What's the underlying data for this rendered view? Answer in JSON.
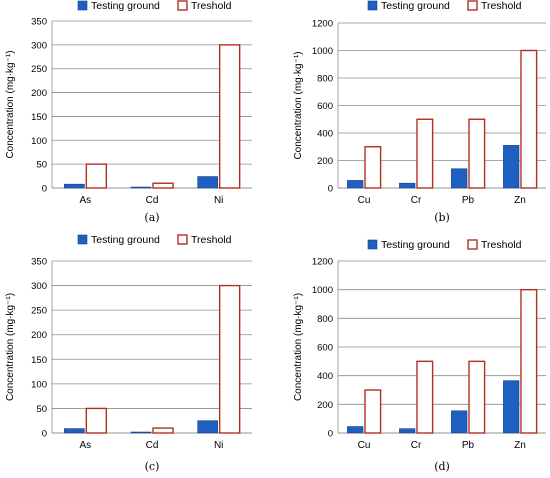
{
  "colors": {
    "testing": "#1f5fbf",
    "testing_edge": "#1a3f8f",
    "threshold_edge": "#b03020",
    "threshold_fill": "#ffffff",
    "grid": "#8c8c8c"
  },
  "chart_data": [
    {
      "type": "bar",
      "panel": "(a)",
      "categories": [
        "As",
        "Cd",
        "Ni"
      ],
      "series": [
        {
          "name": "Testing ground",
          "values": [
            8,
            2,
            24
          ]
        },
        {
          "name": "Treshold",
          "values": [
            50,
            10,
            300
          ]
        }
      ],
      "ylabel": "Concentration (mg·kg⁻¹)",
      "ylim": [
        0,
        350
      ],
      "yticks": [
        0,
        50,
        100,
        150,
        200,
        250,
        300,
        350
      ],
      "grid": true,
      "legend": "top"
    },
    {
      "type": "bar",
      "panel": "(b)",
      "categories": [
        "Cu",
        "Cr",
        "Pb",
        "Zn"
      ],
      "series": [
        {
          "name": "Testing ground",
          "values": [
            55,
            35,
            140,
            310
          ]
        },
        {
          "name": "Treshold",
          "values": [
            300,
            500,
            500,
            1000
          ]
        }
      ],
      "ylabel": "Concentration (mg·kg⁻¹)",
      "ylim": [
        0,
        1200
      ],
      "yticks": [
        0,
        200,
        400,
        600,
        800,
        1000,
        1200
      ],
      "grid": true,
      "legend": "top"
    },
    {
      "type": "bar",
      "panel": "(c)",
      "categories": [
        "As",
        "Cd",
        "Ni"
      ],
      "series": [
        {
          "name": "Testing ground",
          "values": [
            9,
            2,
            25
          ]
        },
        {
          "name": "Treshold",
          "values": [
            50,
            10,
            300
          ]
        }
      ],
      "ylabel": "Concentration (mg·kg⁻¹)",
      "ylim": [
        0,
        350
      ],
      "yticks": [
        0,
        50,
        100,
        150,
        200,
        250,
        300,
        350
      ],
      "grid": true,
      "legend": "top"
    },
    {
      "type": "bar",
      "panel": "(d)",
      "categories": [
        "Cu",
        "Cr",
        "Pb",
        "Zn"
      ],
      "series": [
        {
          "name": "Testing ground",
          "values": [
            45,
            30,
            155,
            365
          ]
        },
        {
          "name": "Treshold",
          "values": [
            300,
            500,
            500,
            1000
          ]
        }
      ],
      "ylabel": "Concentration (mg·kg⁻¹)",
      "ylim": [
        0,
        1200
      ],
      "yticks": [
        0,
        200,
        400,
        600,
        800,
        1000,
        1200
      ],
      "grid": true,
      "legend": "top"
    }
  ]
}
